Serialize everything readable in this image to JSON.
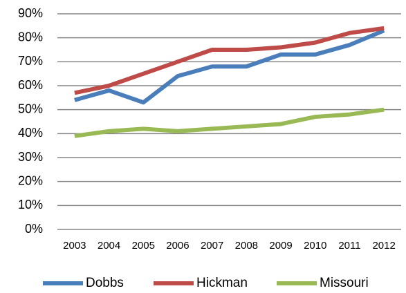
{
  "chart_data": {
    "type": "line",
    "categories": [
      "2003",
      "2004",
      "2005",
      "2006",
      "2007",
      "2008",
      "2009",
      "2010",
      "2011",
      "2012"
    ],
    "series": [
      {
        "name": "Dobbs",
        "color": "#4a7ebb",
        "values": [
          54,
          58,
          53,
          64,
          68,
          68,
          73,
          73,
          77,
          83
        ]
      },
      {
        "name": "Hickman",
        "color": "#be4b48",
        "values": [
          57,
          60,
          65,
          70,
          75,
          75,
          76,
          78,
          82,
          84
        ]
      },
      {
        "name": "Missouri",
        "color": "#98b954",
        "values": [
          39,
          41,
          42,
          41,
          42,
          43,
          44,
          47,
          48,
          50
        ]
      }
    ],
    "ylim": [
      0,
      90
    ],
    "yticks": [
      {
        "value": 0,
        "label": "0%"
      },
      {
        "value": 10,
        "label": "10%"
      },
      {
        "value": 20,
        "label": "20%"
      },
      {
        "value": 30,
        "label": "30%"
      },
      {
        "value": 40,
        "label": "40%"
      },
      {
        "value": 50,
        "label": "50%"
      },
      {
        "value": 60,
        "label": "60%"
      },
      {
        "value": 70,
        "label": "70%"
      },
      {
        "value": 80,
        "label": "80%"
      },
      {
        "value": 90,
        "label": "90%"
      }
    ],
    "grid": true,
    "legend": "bottom"
  }
}
